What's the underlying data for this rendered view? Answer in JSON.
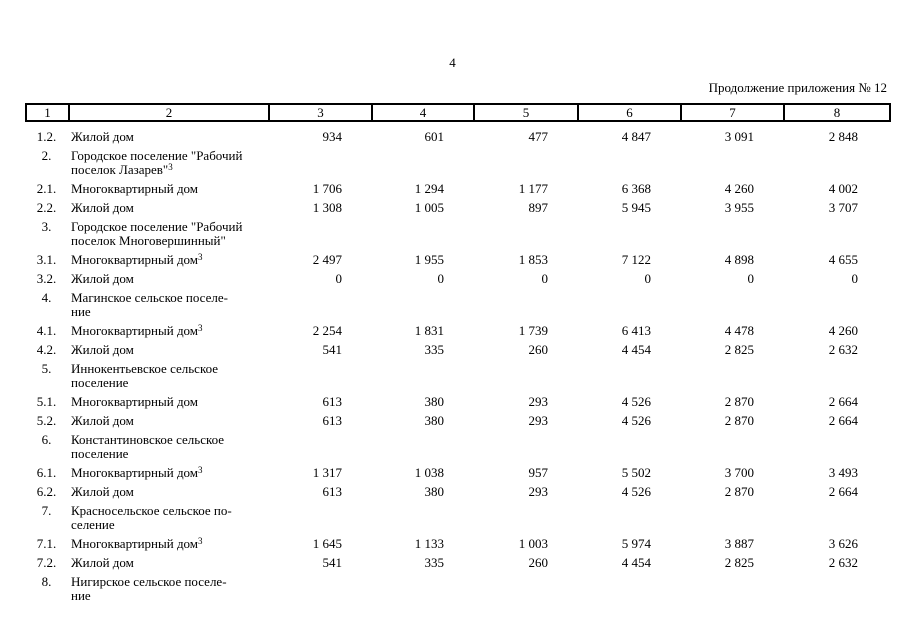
{
  "page": {
    "number": "4",
    "continuation": "Продолжение приложения № 12"
  },
  "table": {
    "header": [
      "1",
      "2",
      "3",
      "4",
      "5",
      "6",
      "7",
      "8"
    ],
    "rows": [
      {
        "num": "1.2.",
        "lines": [
          "Жилой дом"
        ],
        "sup": "",
        "values": [
          "934",
          "601",
          "477",
          "4 847",
          "3 091",
          "2 848"
        ]
      },
      {
        "num": "2.",
        "lines": [
          "Городское поселение \"Рабочий",
          "поселок Лазарев\""
        ],
        "sup": "3",
        "values": []
      },
      {
        "num": "2.1.",
        "lines": [
          "Многоквартирный дом"
        ],
        "sup": "",
        "values": [
          "1 706",
          "1 294",
          "1 177",
          "6 368",
          "4 260",
          "4 002"
        ]
      },
      {
        "num": "2.2.",
        "lines": [
          "Жилой дом"
        ],
        "sup": "",
        "values": [
          "1 308",
          "1 005",
          "897",
          "5 945",
          "3 955",
          "3 707"
        ]
      },
      {
        "num": "3.",
        "lines": [
          "Городское поселение \"Рабочий",
          "поселок Многовершинный\""
        ],
        "sup": "",
        "values": []
      },
      {
        "num": "3.1.",
        "lines": [
          "Многоквартирный дом"
        ],
        "sup": "3",
        "values": [
          "2 497",
          "1 955",
          "1 853",
          "7 122",
          "4 898",
          "4 655"
        ]
      },
      {
        "num": "3.2.",
        "lines": [
          "Жилой дом"
        ],
        "sup": "",
        "values": [
          "0",
          "0",
          "0",
          "0",
          "0",
          "0"
        ]
      },
      {
        "num": "4.",
        "lines": [
          "Магинское сельское поселе-",
          "ние"
        ],
        "sup": "",
        "values": []
      },
      {
        "num": "4.1.",
        "lines": [
          "Многоквартирный дом"
        ],
        "sup": "3",
        "values": [
          "2 254",
          "1 831",
          "1 739",
          "6 413",
          "4 478",
          "4 260"
        ]
      },
      {
        "num": "4.2.",
        "lines": [
          "Жилой дом"
        ],
        "sup": "",
        "values": [
          "541",
          "335",
          "260",
          "4 454",
          "2 825",
          "2 632"
        ]
      },
      {
        "num": "5.",
        "lines": [
          "Иннокентьевское сельское",
          "поселение"
        ],
        "sup": "",
        "values": []
      },
      {
        "num": "5.1.",
        "lines": [
          "Многоквартирный дом"
        ],
        "sup": "",
        "values": [
          "613",
          "380",
          "293",
          "4 526",
          "2 870",
          "2 664"
        ]
      },
      {
        "num": "5.2.",
        "lines": [
          "Жилой дом"
        ],
        "sup": "",
        "values": [
          "613",
          "380",
          "293",
          "4 526",
          "2 870",
          "2 664"
        ]
      },
      {
        "num": "6.",
        "lines": [
          "Константиновское сельское",
          "поселение"
        ],
        "sup": "",
        "values": []
      },
      {
        "num": "6.1.",
        "lines": [
          "Многоквартирный дом"
        ],
        "sup": "3",
        "values": [
          "1 317",
          "1 038",
          "957",
          "5 502",
          "3 700",
          "3 493"
        ]
      },
      {
        "num": "6.2.",
        "lines": [
          "Жилой дом"
        ],
        "sup": "",
        "values": [
          "613",
          "380",
          "293",
          "4 526",
          "2 870",
          "2 664"
        ]
      },
      {
        "num": "7.",
        "lines": [
          "Красносельское сельское по-",
          "селение"
        ],
        "sup": "",
        "values": []
      },
      {
        "num": "7.1.",
        "lines": [
          "Многоквартирный дом"
        ],
        "sup": "3",
        "values": [
          "1 645",
          "1 133",
          "1 003",
          "5 974",
          "3 887",
          "3 626"
        ]
      },
      {
        "num": "7.2.",
        "lines": [
          "Жилой дом"
        ],
        "sup": "",
        "values": [
          "541",
          "335",
          "260",
          "4 454",
          "2 825",
          "2 632"
        ]
      },
      {
        "num": "8.",
        "lines": [
          "Нигирское сельское поселе-",
          "ние"
        ],
        "sup": "",
        "values": []
      }
    ]
  }
}
